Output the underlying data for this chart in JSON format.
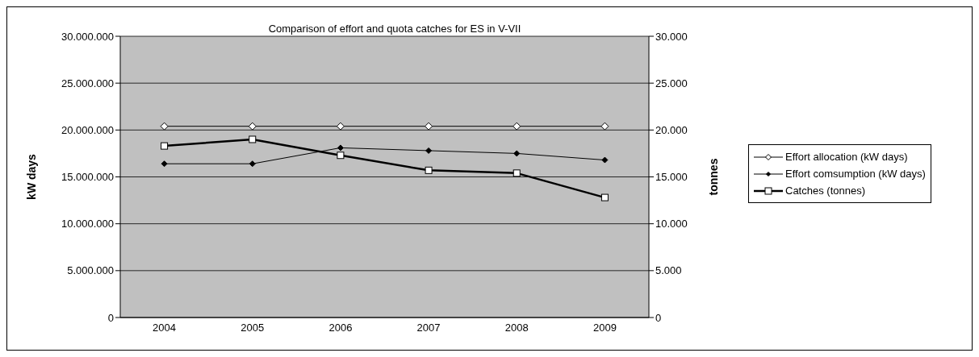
{
  "chart_data": {
    "type": "line",
    "title": "Comparison of effort and quota catches for ES  in V-VII",
    "ylabel": "kW days",
    "y2label": "tonnes",
    "categories": [
      "2004",
      "2005",
      "2006",
      "2007",
      "2008",
      "2009"
    ],
    "series": [
      {
        "name": "Effort allocation (kW days)",
        "color": "#000000",
        "marker": "diamond",
        "values": [
          20400000,
          20400000,
          20400000,
          20400000,
          20400000,
          20400000
        ]
      },
      {
        "name": "Effort comsumption (kW days)",
        "color": "#000000",
        "marker": "diamond",
        "values": [
          16400000,
          16400000,
          18100000,
          17800000,
          17500000,
          16800000
        ]
      },
      {
        "name": "Catches (tonnes)",
        "color": "#000000",
        "marker": "square",
        "axis": "y2",
        "values": [
          18300,
          19000,
          17300,
          15700,
          15400,
          12800
        ]
      }
    ],
    "ylim": [
      0,
      30000000
    ],
    "yticks": [
      {
        "value": 0,
        "label": "0"
      },
      {
        "value": 5000000,
        "label": "5.000.000"
      },
      {
        "value": 10000000,
        "label": "10.000.000"
      },
      {
        "value": 15000000,
        "label": "15.000.000"
      },
      {
        "value": 20000000,
        "label": "20.000.000"
      },
      {
        "value": 25000000,
        "label": "25.000.000"
      },
      {
        "value": 30000000,
        "label": "30.000.000"
      }
    ],
    "y2lim": [
      0,
      30000
    ],
    "y2ticks": [
      {
        "value": 0,
        "label": "0"
      },
      {
        "value": 5000,
        "label": "5.000"
      },
      {
        "value": 10000,
        "label": "10.000"
      },
      {
        "value": 15000,
        "label": "15.000"
      },
      {
        "value": 20000,
        "label": "20.000"
      },
      {
        "value": 25000,
        "label": "25.000"
      },
      {
        "value": 30000,
        "label": "30.000"
      }
    ],
    "grid": "y",
    "legend": "right",
    "line_style": "solid"
  }
}
